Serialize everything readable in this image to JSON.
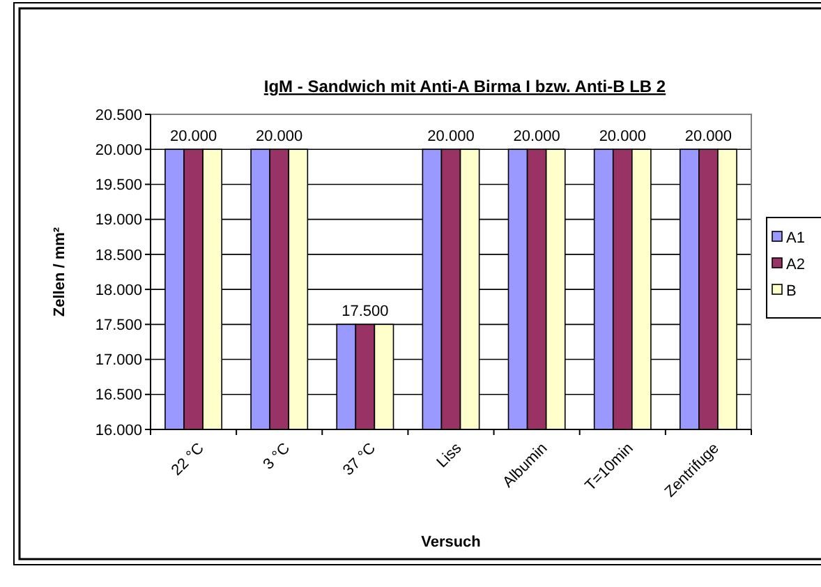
{
  "chart_data": {
    "type": "bar",
    "title": "IgM - Sandwich mit Anti-A Birma I bzw. Anti-B LB 2",
    "xlabel": "Versuch",
    "ylabel": "Zellen / mm²",
    "categories": [
      "22 °C",
      "3 °C",
      "37 °C",
      "Liss",
      "Albumin",
      "T=10min",
      "Zentrifuge"
    ],
    "series": [
      {
        "name": "A1",
        "color": "#9999ff",
        "values": [
          20000,
          20000,
          17500,
          20000,
          20000,
          20000,
          20000
        ]
      },
      {
        "name": "A2",
        "color": "#993366",
        "values": [
          20000,
          20000,
          17500,
          20000,
          20000,
          20000,
          20000
        ],
        "value_labels": [
          "20.000",
          "20.000",
          "17.500",
          "20.000",
          "20.000",
          "20.000",
          "20.000"
        ]
      },
      {
        "name": "B",
        "color": "#ffffcc",
        "values": [
          20000,
          20000,
          17500,
          20000,
          20000,
          20000,
          20000
        ]
      }
    ],
    "ylim": [
      16000,
      20500
    ],
    "yticks": [
      {
        "value": 16000,
        "label": "16.000"
      },
      {
        "value": 16500,
        "label": "16.500"
      },
      {
        "value": 17000,
        "label": "17.000"
      },
      {
        "value": 17500,
        "label": "17.500"
      },
      {
        "value": 18000,
        "label": "18.000"
      },
      {
        "value": 18500,
        "label": "18.500"
      },
      {
        "value": 19000,
        "label": "19.000"
      },
      {
        "value": 19500,
        "label": "19.500"
      },
      {
        "value": 20000,
        "label": "20.000"
      },
      {
        "value": 20500,
        "label": "20.500"
      }
    ],
    "grid": "y",
    "legend": "right"
  }
}
